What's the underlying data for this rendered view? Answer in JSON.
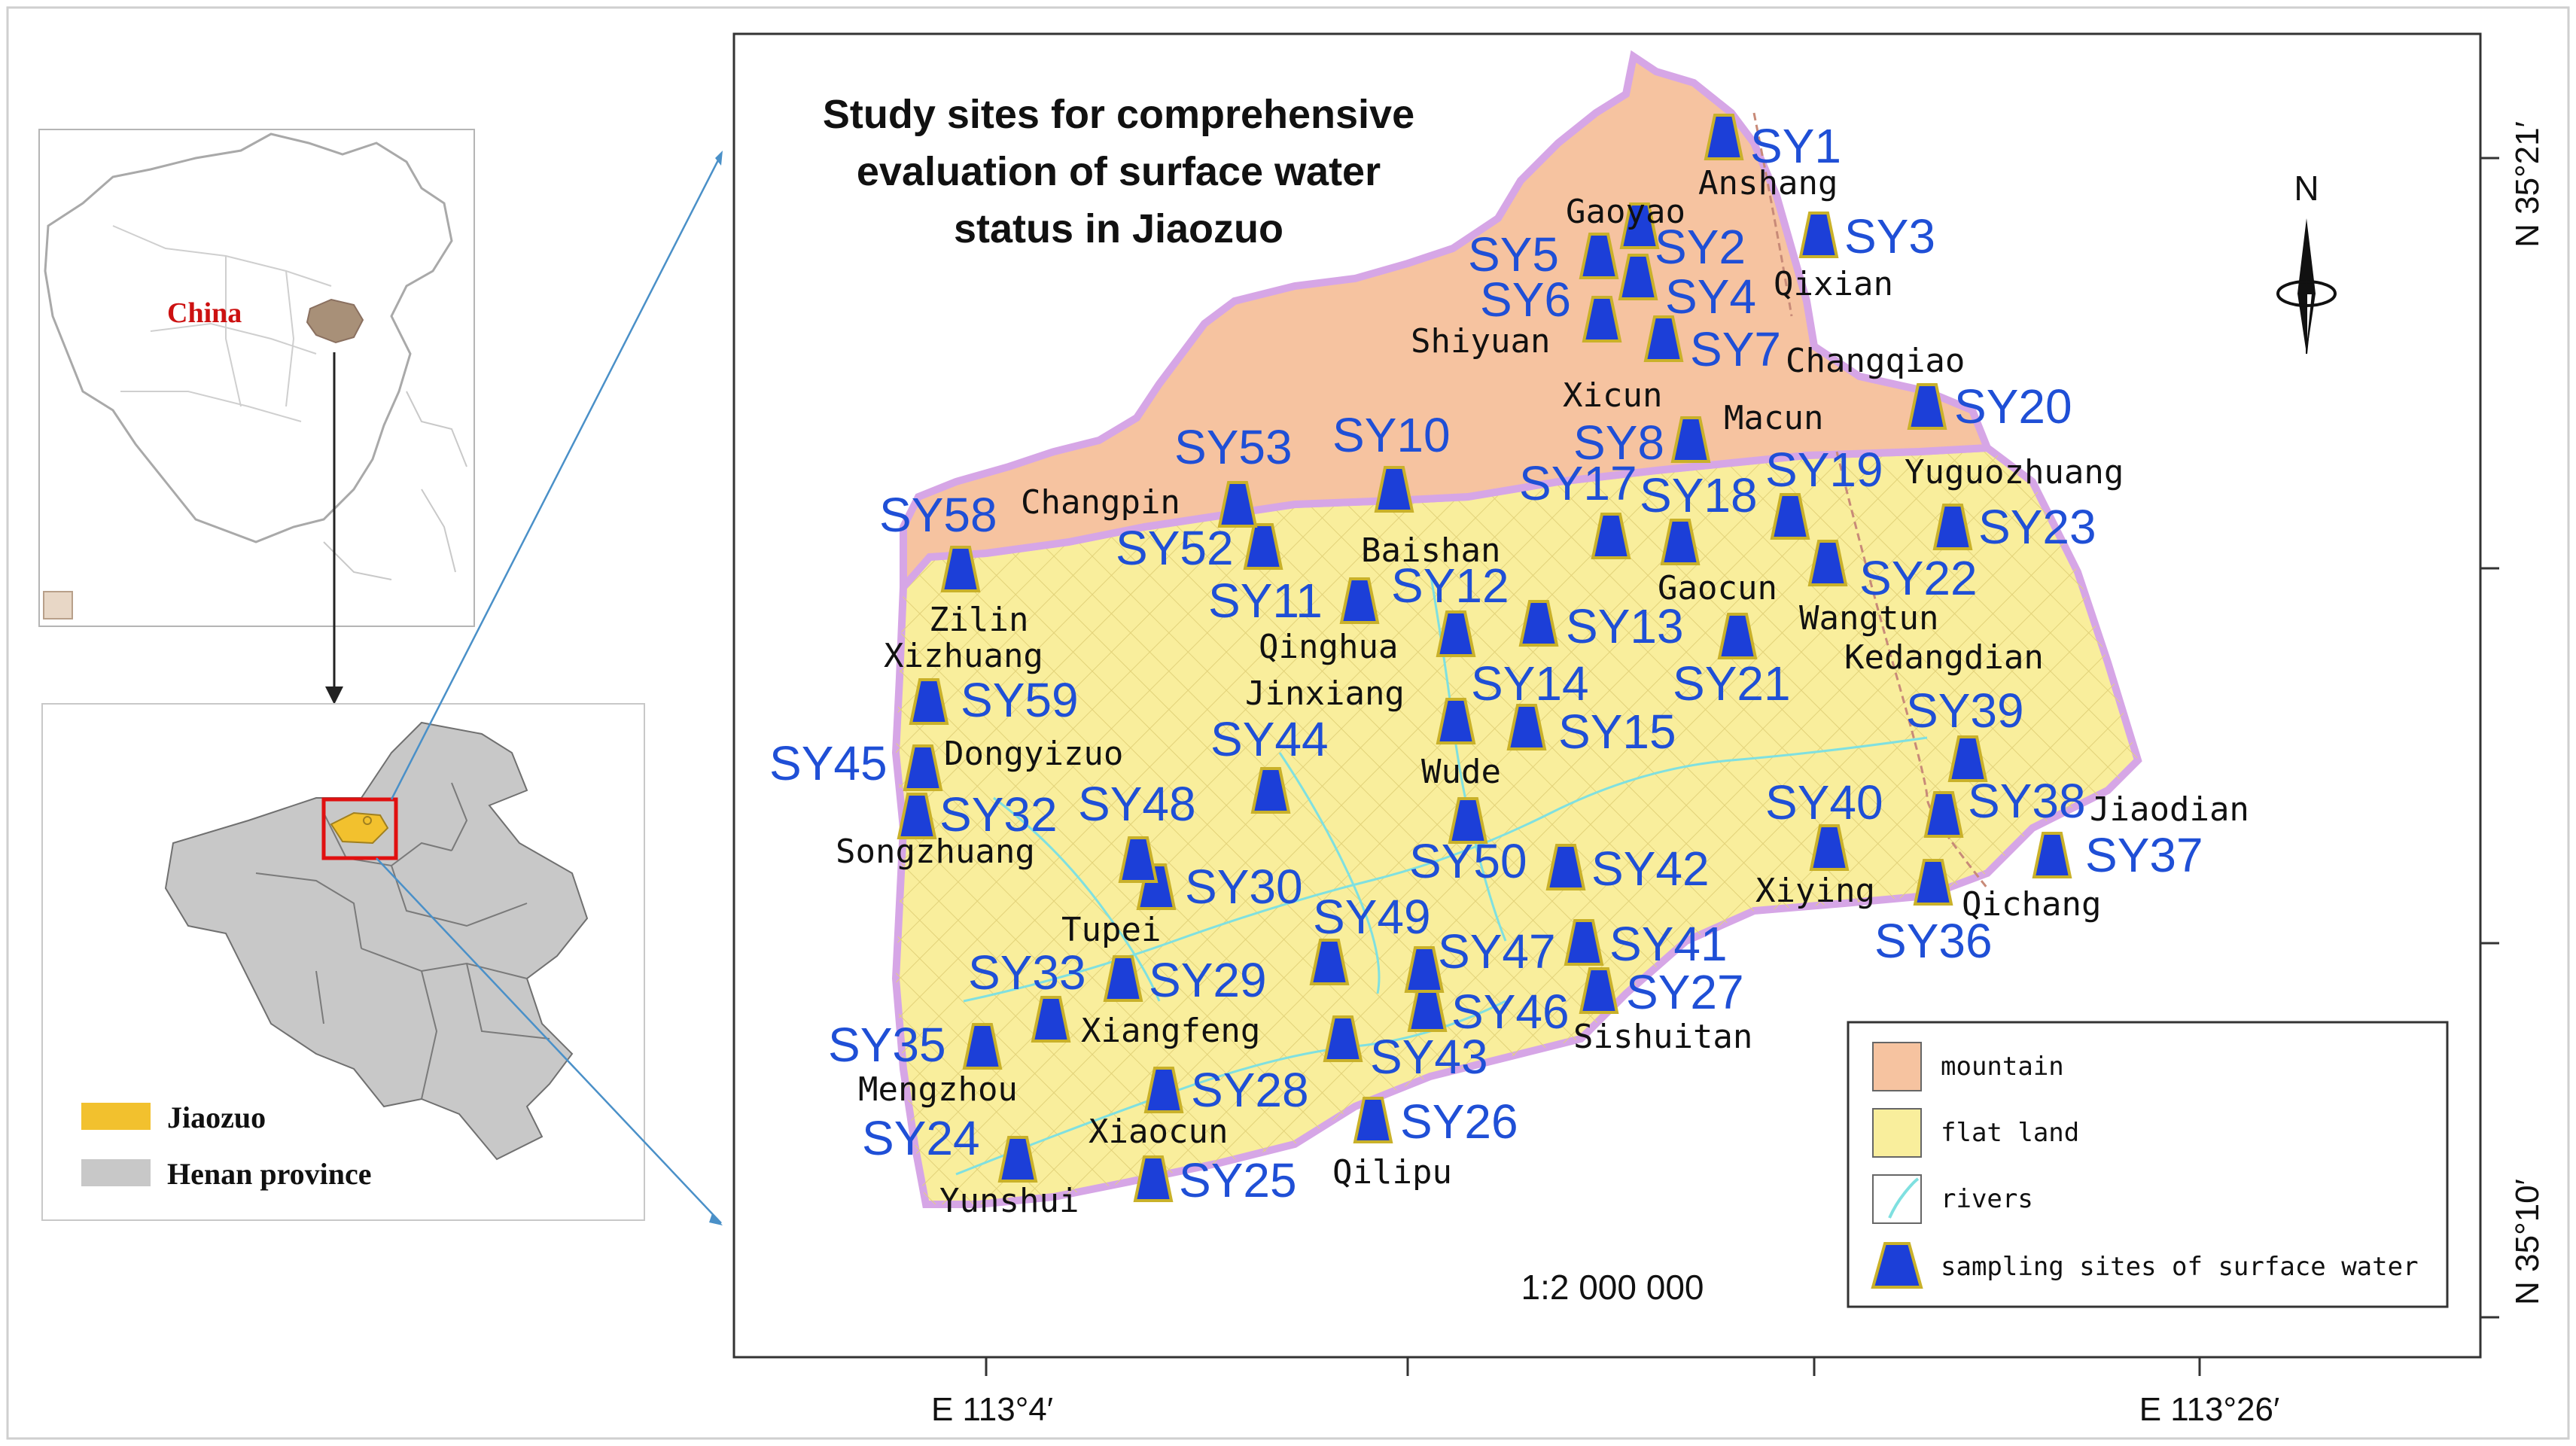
{
  "title_lines": [
    "Study sites for comprehensive",
    "evaluation of surface water",
    "status in Jiaozuo"
  ],
  "inset_china": {
    "label": "China"
  },
  "inset_henan": {
    "legend": [
      "Jiaozuo",
      "Henan province"
    ]
  },
  "north_arrow": {
    "label": "N"
  },
  "scale": "1:2 000 000",
  "axes": {
    "lon_left": "E 113°4′",
    "lon_right": "E 113°26′",
    "lat_top": "N 35°21′",
    "lat_bottom": "N 35°10′"
  },
  "legend": [
    "mountain",
    "flat land",
    "rivers",
    "sampling sites of surface water"
  ],
  "colors": {
    "mountain": "#f6c3a0",
    "flat_land": "#f9ee9c",
    "rivers": "#7fe0e0",
    "site_fill": "#1c3fd8",
    "site_outline": "#c9b12a",
    "site_label": "#1f4fd6",
    "china_highlight": "#a89078",
    "jiaozuo": "#f2c12e",
    "henan": "#c8c8c8",
    "locator_box": "#e01010",
    "callout_line": "#4a90c8"
  },
  "sites": [
    "SY1",
    "SY2",
    "SY3",
    "SY4",
    "SY5",
    "SY6",
    "SY7",
    "SY8",
    "SY10",
    "SY11",
    "SY12",
    "SY13",
    "SY14",
    "SY15",
    "SY17",
    "SY18",
    "SY19",
    "SY20",
    "SY21",
    "SY22",
    "SY23",
    "SY24",
    "SY25",
    "SY26",
    "SY27",
    "SY28",
    "SY29",
    "SY30",
    "SY32",
    "SY33",
    "SY35",
    "SY36",
    "SY37",
    "SY38",
    "SY39",
    "SY40",
    "SY41",
    "SY42",
    "SY43",
    "SY44",
    "SY45",
    "SY46",
    "SY47",
    "SY48",
    "SY49",
    "SY50",
    "SY52",
    "SY53",
    "SY58",
    "SY59"
  ],
  "places": [
    "Anshang",
    "Gaoyao",
    "Qixian",
    "Shiyuan",
    "Changqiao",
    "Xicun",
    "Macun",
    "Yuguozhuang",
    "Changpin",
    "Baishan",
    "Gaocun",
    "Wangtun",
    "Zilin",
    "Qinghua",
    "Kedangdian",
    "Xizhuang",
    "Jinxiang",
    "Dongyizuo",
    "Wude",
    "Jiaodian",
    "Songzhuang",
    "Xiying",
    "Qichang",
    "Tupei",
    "Xiangfeng",
    "Sishuitan",
    "Mengzhou",
    "Xiaocun",
    "Qilipu",
    "Yunshui"
  ]
}
